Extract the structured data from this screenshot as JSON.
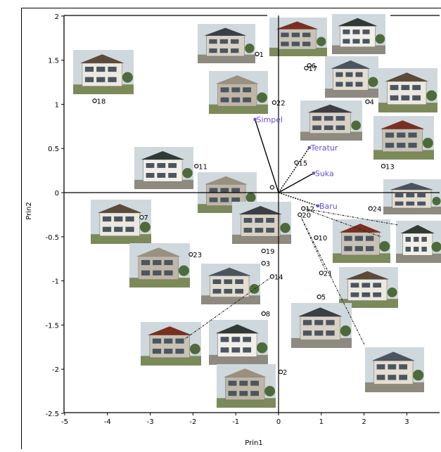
{
  "chart_data": {
    "type": "scatter",
    "title": "",
    "xlabel": "Prin1",
    "ylabel": "Prin2",
    "xlim": [
      -5,
      3.6
    ],
    "ylim": [
      -2.5,
      2
    ],
    "x_ticks": [
      -5,
      -4,
      -3,
      -2,
      -1,
      0,
      1,
      2,
      3
    ],
    "y_ticks": [
      -2.5,
      -2,
      -1.5,
      -1,
      -0.5,
      0,
      0.5,
      1,
      1.5,
      2
    ],
    "x_tick_labels": [
      "-5",
      "-4",
      "-3",
      "-2",
      "-1",
      "0",
      "1",
      "2",
      "3"
    ],
    "y_tick_labels": [
      "-2.5",
      "-2",
      "-1.5",
      "-1",
      "-0.5",
      "0",
      "0.5",
      "1",
      "1.5",
      "2"
    ],
    "grid": false,
    "observations": [
      {
        "label": "1",
        "x": -0.5,
        "y": 1.57
      },
      {
        "label": "2",
        "x": 0.05,
        "y": -2.03
      },
      {
        "label": "3",
        "x": -0.35,
        "y": -0.8
      },
      {
        "label": "4",
        "x": 2.08,
        "y": 1.03
      },
      {
        "label": "5",
        "x": 0.95,
        "y": -1.18
      },
      {
        "label": "6",
        "x": 0.72,
        "y": 1.44
      },
      {
        "label": "7",
        "x": -3.2,
        "y": -0.28
      },
      {
        "label": "8",
        "x": -0.35,
        "y": -1.37
      },
      {
        "label": "10",
        "x": 0.88,
        "y": -0.51
      },
      {
        "label": "11",
        "x": -1.92,
        "y": 0.3
      },
      {
        "label": "12",
        "x": 0.58,
        "y": -0.18
      },
      {
        "label": "13",
        "x": 2.45,
        "y": 0.3
      },
      {
        "label": "14",
        "x": -0.15,
        "y": -0.95
      },
      {
        "label": "15",
        "x": 0.42,
        "y": 0.34
      },
      {
        "label": "17",
        "x": 0.65,
        "y": 1.41
      },
      {
        "label": "18",
        "x": -4.3,
        "y": 1.04
      },
      {
        "label": "19",
        "x": -0.35,
        "y": -0.66
      },
      {
        "label": "20",
        "x": 0.5,
        "y": -0.25
      },
      {
        "label": "21",
        "x": 1.0,
        "y": -0.91
      },
      {
        "label": "22",
        "x": -0.1,
        "y": 1.02
      },
      {
        "label": "23",
        "x": -2.05,
        "y": -0.7
      },
      {
        "label": "24",
        "x": 2.15,
        "y": -0.18
      },
      {
        "label": "",
        "x": -0.15,
        "y": 0.06
      }
    ],
    "attributes": [
      {
        "name": "Simpel",
        "x": -0.55,
        "y": 0.83
      },
      {
        "name": "Teratur",
        "x": 0.72,
        "y": 0.51
      },
      {
        "name": "Suka",
        "x": 0.82,
        "y": 0.22
      },
      {
        "name": "Baru",
        "x": 0.92,
        "y": -0.15
      }
    ],
    "colors": {
      "attribute": "#6a4fc8",
      "point": "#111111",
      "axis": "#000000"
    }
  }
}
